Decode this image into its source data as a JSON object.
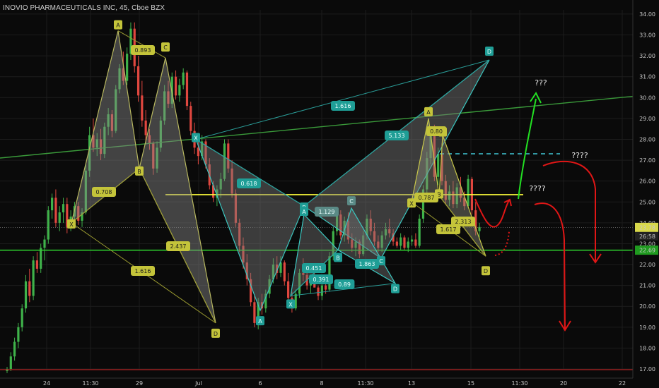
{
  "header": {
    "title": "INOVIO PHARMACEUTICALS INC, 45, Cboe BZX"
  },
  "colors": {
    "background": "#0a0a0a",
    "up": "#3fb24a",
    "down": "#e0473f",
    "pattern_yellow": "#c8c84a",
    "pattern_teal": "#3bc7c0",
    "green_line": "#2fd42f",
    "yellow_line": "#ffff3a",
    "red_arrow": "#e01616",
    "green_arrow": "#22e022",
    "price_tag": "#d8d84a",
    "current_tag": "#1a1a1a",
    "support_tag": "#1f9a1f"
  },
  "chart_data": {
    "type": "candlestick",
    "title": "INOVIO PHARMACEUTICALS INC, 45, Cboe BZX",
    "ylim": [
      17.0,
      34.2
    ],
    "y_ticks": [
      "34.00",
      "33.00",
      "32.00",
      "31.00",
      "30.00",
      "29.00",
      "28.00",
      "27.00",
      "26.00",
      "25.00",
      "24.00",
      "23.00",
      "22.00",
      "21.00",
      "20.00",
      "19.00",
      "18.00",
      "17.00"
    ],
    "x_ticks": [
      "24",
      "11:30",
      "29",
      "Jul",
      "6",
      "8",
      "11:30",
      "13",
      "15",
      "11:30",
      "20",
      "22"
    ],
    "price_labels": {
      "last": "23.78",
      "countdown": "26:58",
      "support": "22.69"
    },
    "candles": [
      [
        16.9,
        17.1,
        16.8,
        17.0
      ],
      [
        17.0,
        17.8,
        16.9,
        17.6
      ],
      [
        17.6,
        18.5,
        17.4,
        18.3
      ],
      [
        18.3,
        19.2,
        18.0,
        19.0
      ],
      [
        19.0,
        20.1,
        18.8,
        19.9
      ],
      [
        19.9,
        21.5,
        19.7,
        21.2
      ],
      [
        21.2,
        21.8,
        20.2,
        20.5
      ],
      [
        20.5,
        22.4,
        20.3,
        22.2
      ],
      [
        22.2,
        22.6,
        21.6,
        21.8
      ],
      [
        21.8,
        23.0,
        21.6,
        22.8
      ],
      [
        22.8,
        23.4,
        22.2,
        23.2
      ],
      [
        23.2,
        24.8,
        23.0,
        24.6
      ],
      [
        24.6,
        25.4,
        24.2,
        25.2
      ],
      [
        25.2,
        25.6,
        23.8,
        24.0
      ],
      [
        24.0,
        24.8,
        23.6,
        24.5
      ],
      [
        24.5,
        25.2,
        24.0,
        24.9
      ],
      [
        24.9,
        25.2,
        23.5,
        23.8
      ],
      [
        23.8,
        24.6,
        23.6,
        24.3
      ],
      [
        24.3,
        25.0,
        24.1,
        24.8
      ],
      [
        24.8,
        25.0,
        23.9,
        24.1
      ],
      [
        24.1,
        24.7,
        23.8,
        24.5
      ],
      [
        24.5,
        26.8,
        24.4,
        26.5
      ],
      [
        26.5,
        28.6,
        26.2,
        28.2
      ],
      [
        28.2,
        29.0,
        27.4,
        27.6
      ],
      [
        27.6,
        28.3,
        27.2,
        28.0
      ],
      [
        28.0,
        28.5,
        27.0,
        27.3
      ],
      [
        27.3,
        28.8,
        27.1,
        28.6
      ],
      [
        28.6,
        29.5,
        28.2,
        29.2
      ],
      [
        29.2,
        29.4,
        28.1,
        28.4
      ],
      [
        28.4,
        30.6,
        28.3,
        30.4
      ],
      [
        30.4,
        31.6,
        30.2,
        31.4
      ],
      [
        31.4,
        32.2,
        30.6,
        30.8
      ],
      [
        30.8,
        32.4,
        30.6,
        32.1
      ],
      [
        32.1,
        33.6,
        31.8,
        33.3
      ],
      [
        33.3,
        33.6,
        31.2,
        31.5
      ],
      [
        31.5,
        32.0,
        29.8,
        30.1
      ],
      [
        30.1,
        30.8,
        28.6,
        28.9
      ],
      [
        28.9,
        29.4,
        27.8,
        28.2
      ],
      [
        28.2,
        28.5,
        27.5,
        27.8
      ],
      [
        27.8,
        27.9,
        26.3,
        26.6
      ],
      [
        26.6,
        27.9,
        26.4,
        27.6
      ],
      [
        27.6,
        29.1,
        27.4,
        28.9
      ],
      [
        28.9,
        30.6,
        28.7,
        30.3
      ],
      [
        30.3,
        30.8,
        29.5,
        29.7
      ],
      [
        29.7,
        31.2,
        29.5,
        31.0
      ],
      [
        31.0,
        31.3,
        29.9,
        30.1
      ],
      [
        30.1,
        30.9,
        29.8,
        30.6
      ],
      [
        30.6,
        31.4,
        30.4,
        31.2
      ],
      [
        31.2,
        31.3,
        29.4,
        29.6
      ],
      [
        29.6,
        29.8,
        28.2,
        28.4
      ],
      [
        28.4,
        28.8,
        27.3,
        27.6
      ],
      [
        27.6,
        28.0,
        26.8,
        27.2
      ],
      [
        27.2,
        28.2,
        27.0,
        27.9
      ],
      [
        27.9,
        28.0,
        26.6,
        26.8
      ],
      [
        26.8,
        27.1,
        25.6,
        25.8
      ],
      [
        25.8,
        26.0,
        25.0,
        25.2
      ],
      [
        25.2,
        25.8,
        24.8,
        25.6
      ],
      [
        25.6,
        26.4,
        25.2,
        26.1
      ],
      [
        26.1,
        28.0,
        26.0,
        27.8
      ],
      [
        27.8,
        28.0,
        26.4,
        26.6
      ],
      [
        26.6,
        27.0,
        25.2,
        25.4
      ],
      [
        25.4,
        25.6,
        23.8,
        24.0
      ],
      [
        24.0,
        24.2,
        22.6,
        22.9
      ],
      [
        22.9,
        23.3,
        21.8,
        22.1
      ],
      [
        22.1,
        22.5,
        21.0,
        21.3
      ],
      [
        21.3,
        21.6,
        20.0,
        20.2
      ],
      [
        20.2,
        20.5,
        19.0,
        19.2
      ],
      [
        19.2,
        20.4,
        18.9,
        20.2
      ],
      [
        20.2,
        20.6,
        19.6,
        19.9
      ],
      [
        19.9,
        20.8,
        19.7,
        20.6
      ],
      [
        20.6,
        21.5,
        20.4,
        21.3
      ],
      [
        21.3,
        22.3,
        21.1,
        22.0
      ],
      [
        22.0,
        22.4,
        21.3,
        21.6
      ],
      [
        21.6,
        22.4,
        21.4,
        22.1
      ],
      [
        22.1,
        22.2,
        21.0,
        21.2
      ],
      [
        21.2,
        21.6,
        20.2,
        20.4
      ],
      [
        20.4,
        20.7,
        19.7,
        19.9
      ],
      [
        19.9,
        20.8,
        19.8,
        20.6
      ],
      [
        20.6,
        21.8,
        20.4,
        21.6
      ],
      [
        21.6,
        22.3,
        21.2,
        21.5
      ],
      [
        21.5,
        21.7,
        20.8,
        21.0
      ],
      [
        21.0,
        21.4,
        20.6,
        21.2
      ],
      [
        21.2,
        21.8,
        20.9,
        20.9
      ],
      [
        20.9,
        21.0,
        20.3,
        20.5
      ],
      [
        20.5,
        21.2,
        20.3,
        21.0
      ],
      [
        21.0,
        21.4,
        20.6,
        20.8
      ],
      [
        20.8,
        22.6,
        20.7,
        22.4
      ],
      [
        22.4,
        23.8,
        22.2,
        23.6
      ],
      [
        23.6,
        24.6,
        23.4,
        24.4
      ],
      [
        24.4,
        24.6,
        23.2,
        23.4
      ],
      [
        23.4,
        24.3,
        23.1,
        24.1
      ],
      [
        24.1,
        24.5,
        23.0,
        23.2
      ],
      [
        23.2,
        23.5,
        22.6,
        22.8
      ],
      [
        22.8,
        23.3,
        22.4,
        23.1
      ],
      [
        23.1,
        23.2,
        22.3,
        22.5
      ],
      [
        22.5,
        23.6,
        22.4,
        23.4
      ],
      [
        23.4,
        24.4,
        23.2,
        24.2
      ],
      [
        24.2,
        24.6,
        23.4,
        23.6
      ],
      [
        23.6,
        24.0,
        22.9,
        23.1
      ],
      [
        23.1,
        23.4,
        22.6,
        22.8
      ],
      [
        22.8,
        23.6,
        22.6,
        23.4
      ],
      [
        23.4,
        24.0,
        23.2,
        23.7
      ],
      [
        23.7,
        24.2,
        23.3,
        23.5
      ],
      [
        23.5,
        23.7,
        22.9,
        23.1
      ],
      [
        23.1,
        23.3,
        22.8,
        22.9
      ],
      [
        22.9,
        23.5,
        22.7,
        23.3
      ],
      [
        23.3,
        23.4,
        22.7,
        22.8
      ],
      [
        22.8,
        23.3,
        22.6,
        23.1
      ],
      [
        23.1,
        23.4,
        22.9,
        23.2
      ],
      [
        23.2,
        23.5,
        22.8,
        22.9
      ],
      [
        22.9,
        24.4,
        22.8,
        24.2
      ],
      [
        24.2,
        25.8,
        24.0,
        25.6
      ],
      [
        25.6,
        27.4,
        25.4,
        27.1
      ],
      [
        27.1,
        28.6,
        26.8,
        28.3
      ],
      [
        28.3,
        28.7,
        26.0,
        26.2
      ],
      [
        26.2,
        27.6,
        25.8,
        27.3
      ],
      [
        27.3,
        27.8,
        25.8,
        26.0
      ],
      [
        26.0,
        26.3,
        24.9,
        25.1
      ],
      [
        25.1,
        25.8,
        24.8,
        25.5
      ],
      [
        25.5,
        26.0,
        24.7,
        24.9
      ],
      [
        24.9,
        25.9,
        24.7,
        25.7
      ],
      [
        25.7,
        26.2,
        25.0,
        25.2
      ],
      [
        25.2,
        25.5,
        24.6,
        24.8
      ],
      [
        24.8,
        26.3,
        24.7,
        26.1
      ],
      [
        26.1,
        26.2,
        24.4,
        24.6
      ],
      [
        24.6,
        25.0,
        23.4,
        23.6
      ],
      [
        23.6,
        24.0,
        23.3,
        23.8
      ]
    ],
    "horizontal_lines": [
      {
        "name": "resistance",
        "value": 25.35,
        "color": "yellow"
      },
      {
        "name": "support",
        "value": 22.69,
        "color": "green"
      }
    ],
    "patterns": [
      {
        "color": "yellow",
        "points": [
          [
            "X",
            24.0
          ],
          [
            "A",
            33.2
          ],
          [
            "B",
            26.6
          ],
          [
            "C",
            31.9
          ],
          [
            "D",
            19.2
          ]
        ],
        "ratios": [
          "0.708",
          "0.893",
          "2.437",
          "1.616"
        ]
      },
      {
        "color": "teal",
        "points": [
          [
            "X",
            28.0
          ],
          [
            "A",
            19.8
          ],
          [
            "B",
            24.8
          ],
          [
            "C",
            22.3
          ],
          [
            "D",
            31.8
          ]
        ],
        "ratios": [
          "0.618",
          "1.616",
          "5.133"
        ]
      },
      {
        "color": "teal",
        "points": [
          [
            "X",
            20.5
          ],
          [
            "A",
            24.4
          ],
          [
            "B",
            22.7
          ],
          [
            "C",
            24.7
          ],
          [
            "D",
            21.1
          ]
        ],
        "ratios": [
          "1.129",
          "0.451",
          "0.391",
          "1.863",
          "0.89"
        ]
      },
      {
        "color": "yellow",
        "points": [
          [
            "X",
            25.0
          ],
          [
            "A",
            29.0
          ],
          [
            "B",
            25.3
          ],
          [
            "C",
            28.2
          ],
          [
            "D",
            22.4
          ]
        ],
        "ratios": [
          "0.80",
          "0.787",
          "1.617",
          "2.313"
        ]
      }
    ],
    "annotations": [
      "???",
      "????",
      "????"
    ]
  }
}
